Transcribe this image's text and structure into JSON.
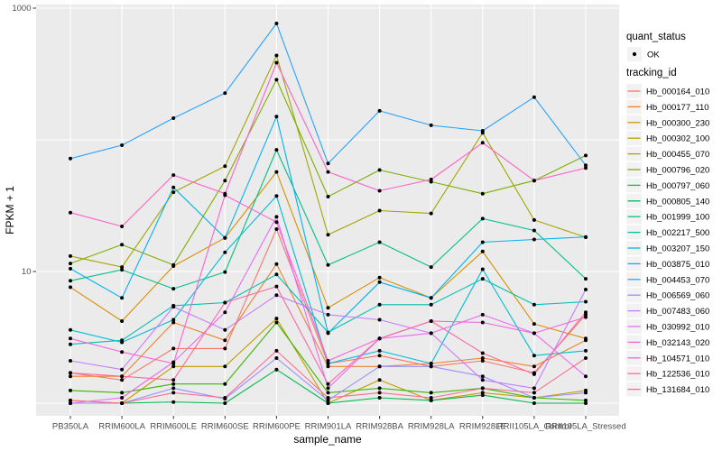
{
  "chart_data": {
    "type": "line",
    "title": "",
    "xlabel": "sample_name",
    "ylabel": "FPKM + 1",
    "y_scale": "log10",
    "ylim": [
      0.9,
      1100
    ],
    "grid": true,
    "legend_position": "right",
    "y_ticks": [
      {
        "label": "1000",
        "value": 1000
      },
      {
        "label": "10",
        "value": 10
      }
    ],
    "grid_y_values": [
      1,
      10,
      100,
      1000
    ],
    "categories": [
      "PB350LA",
      "RRIM600LA",
      "RRIM600LE",
      "RRIM600SE",
      "RRIM600PE",
      "RRIM901LA",
      "RRIM928BA",
      "RRIM928LA",
      "RRIM928LE",
      "RRII105LA_Control",
      "RRII105LA_Stressed"
    ],
    "point_marker": {
      "shape": "filled-circle",
      "color": "#000000"
    },
    "series": [
      {
        "tracking_id": "Hb_000164_010",
        "color": "#F8766D",
        "values": [
          1.7,
          1.5,
          2.6,
          2.6,
          21,
          2.0,
          2.3,
          1.9,
          2.1,
          1.7,
          4.7
        ]
      },
      {
        "tracking_id": "Hb_000177_110",
        "color": "#EA8331",
        "values": [
          1.6,
          1.6,
          4.1,
          3.0,
          11.4,
          1.9,
          1.9,
          2.0,
          2.2,
          1.9,
          3.0
        ]
      },
      {
        "tracking_id": "Hb_000300_230",
        "color": "#D89000",
        "values": [
          7.6,
          4.2,
          11.0,
          18,
          57,
          5.3,
          9.0,
          6.3,
          14.2,
          4.0,
          3.1
        ]
      },
      {
        "tracking_id": "Hb_000302_100",
        "color": "#C09B00",
        "values": [
          1.05,
          1.0,
          1.9,
          1.9,
          4.4,
          1.0,
          1.5,
          1.05,
          1.2,
          1.1,
          1.25
        ]
      },
      {
        "tracking_id": "Hb_000455_070",
        "color": "#A3A500",
        "values": [
          13.1,
          10.8,
          40,
          63,
          437,
          19,
          29,
          27.6,
          113,
          24.6,
          18.2
        ]
      },
      {
        "tracking_id": "Hb_000796_020",
        "color": "#7CAE00",
        "values": [
          11.5,
          16,
          11.2,
          49,
          286,
          37,
          59,
          48,
          39,
          49,
          76
        ]
      },
      {
        "tracking_id": "Hb_000797_060",
        "color": "#39B600",
        "values": [
          1.25,
          1.2,
          1.4,
          1.4,
          4.1,
          1.2,
          1.3,
          1.2,
          1.3,
          1.1,
          1.05
        ]
      },
      {
        "tracking_id": "Hb_000805_140",
        "color": "#00BB4E",
        "values": [
          1.0,
          1.0,
          1.02,
          1.0,
          1.8,
          1.0,
          1.1,
          1.05,
          1.15,
          1.0,
          1.0
        ]
      },
      {
        "tracking_id": "Hb_001999_100",
        "color": "#00C087",
        "values": [
          8.5,
          10.3,
          7.4,
          9.9,
          84,
          11.2,
          16.7,
          10.8,
          25.2,
          20.5,
          8.8
        ]
      },
      {
        "tracking_id": "Hb_002217_500",
        "color": "#00C0B2",
        "values": [
          2.8,
          3.0,
          5.5,
          5.8,
          9.5,
          3.45,
          5.6,
          5.6,
          8.8,
          5.6,
          5.9
        ]
      },
      {
        "tracking_id": "Hb_003207_150",
        "color": "#00BCD6",
        "values": [
          3.6,
          2.9,
          4.3,
          14,
          37.5,
          2.0,
          2.5,
          2.0,
          10.4,
          2.3,
          2.5
        ]
      },
      {
        "tracking_id": "Hb_003875_010",
        "color": "#00B3F2",
        "values": [
          10.5,
          6.3,
          43.5,
          18,
          150,
          3.4,
          8.3,
          6.3,
          16.7,
          17.5,
          18.3
        ]
      },
      {
        "tracking_id": "Hb_004453_070",
        "color": "#29A3FF",
        "values": [
          72,
          91,
          146,
          226,
          765,
          66,
          166,
          129,
          117,
          211,
          64
        ]
      },
      {
        "tracking_id": "Hb_006569_060",
        "color": "#9590FF",
        "values": [
          1.0,
          1.0,
          1.3,
          1.08,
          2.2,
          1.05,
          1.9,
          1.9,
          1.6,
          1.1,
          1.2
        ]
      },
      {
        "tracking_id": "Hb_007483_060",
        "color": "#C77CFF",
        "values": [
          2.1,
          1.8,
          5.4,
          3.6,
          6.6,
          4.7,
          4.3,
          3.4,
          1.5,
          1.3,
          7.3
        ]
      },
      {
        "tracking_id": "Hb_030992_010",
        "color": "#E76BF3",
        "values": [
          1.0,
          1.1,
          2.05,
          4.9,
          26,
          1.3,
          3.1,
          3.4,
          4.7,
          3.4,
          1.6
        ]
      },
      {
        "tracking_id": "Hb_032143_020",
        "color": "#FA62DB",
        "values": [
          3.1,
          2.45,
          2.0,
          38,
          23.7,
          2.1,
          3.1,
          4.2,
          4.1,
          3.4,
          4.5
        ]
      },
      {
        "tracking_id": "Hb_104571_010",
        "color": "#FF61C9",
        "values": [
          28,
          22,
          54,
          39,
          385,
          57,
          41,
          50,
          95,
          49,
          61
        ]
      },
      {
        "tracking_id": "Hb_122536_010",
        "color": "#FF67A4",
        "values": [
          1.7,
          1.6,
          1.5,
          5.8,
          7.7,
          1.4,
          3.1,
          4.2,
          2.4,
          1.66,
          4.9
        ]
      },
      {
        "tracking_id": "Hb_131684_010",
        "color": "#FF6C91",
        "values": [
          1.05,
          1.0,
          1.2,
          1.1,
          2.5,
          1.1,
          1.2,
          1.1,
          1.3,
          1.2,
          2.2
        ]
      }
    ]
  },
  "legend": {
    "quant_status_title": "quant_status",
    "ok_label": "OK",
    "tracking_id_title": "tracking_id"
  },
  "style": {
    "panel_bg": "#EBEBEB",
    "grid_color": "#FFFFFF",
    "tick_label_color": "#4D4D4D",
    "point_color": "#000000",
    "legend_key_bg": "#F2F2F2"
  }
}
